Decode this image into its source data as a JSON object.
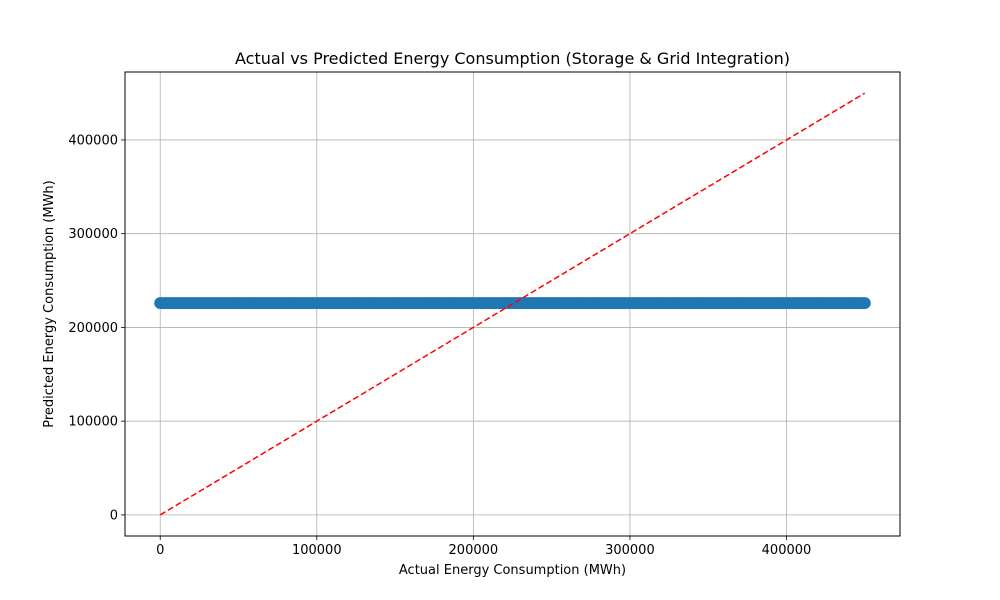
{
  "chart_data": {
    "type": "scatter",
    "title": "Actual vs Predicted Energy Consumption (Storage & Grid Integration)",
    "xlabel": "Actual Energy Consumption (MWh)",
    "ylabel": "Predicted Energy Consumption (MWh)",
    "xlim": [
      -22500,
      472500
    ],
    "ylim": [
      -22500,
      472500
    ],
    "xticks": [
      0,
      100000,
      200000,
      300000,
      400000
    ],
    "yticks": [
      0,
      100000,
      200000,
      300000,
      400000
    ],
    "xtick_labels": [
      "0",
      "100000",
      "200000",
      "300000",
      "400000"
    ],
    "ytick_labels": [
      "0",
      "100000",
      "200000",
      "300000",
      "400000"
    ],
    "grid": true,
    "series": [
      {
        "type": "scatter",
        "color": "#1f77b4",
        "x_range": [
          0,
          450000
        ],
        "predicted_value": 226000,
        "point_count": 300
      },
      {
        "type": "line",
        "style": "dashed",
        "color": "#ff0000",
        "x": [
          0,
          450000
        ],
        "y": [
          0,
          450000
        ]
      }
    ]
  }
}
